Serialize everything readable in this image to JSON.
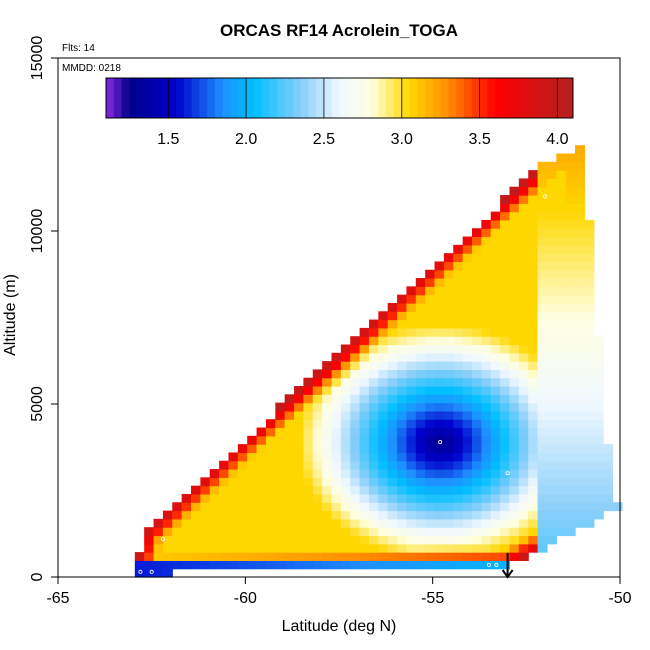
{
  "chart_data": {
    "type": "heatmap",
    "title": "ORCAS RF14 Acrolein_TOGA",
    "notes": {
      "flights": "Flts: 14",
      "date": "MMDD: 0218"
    },
    "xlabel": "Latitude (deg N)",
    "ylabel": "Altitude (m)",
    "xlim": [
      -65,
      -50
    ],
    "ylim": [
      0,
      15000
    ],
    "x_ticks": [
      -65,
      -60,
      -55,
      -50
    ],
    "x_tick_labels": [
      "-65",
      "-60",
      "-55",
      "-50"
    ],
    "y_ticks": [
      0,
      5000,
      10000,
      15000
    ],
    "y_tick_labels": [
      "0",
      "5000",
      "10000",
      "15000"
    ],
    "colorbar": {
      "range": [
        1.1,
        4.1
      ],
      "ticks": [
        1.5,
        2.0,
        2.5,
        3.0,
        3.5,
        4.0
      ],
      "tick_labels": [
        "1.5",
        "2.0",
        "2.5",
        "3.0",
        "3.5",
        "4.0"
      ],
      "colors": [
        "#8a2be2",
        "#00008b",
        "#0000cd",
        "#1e90ff",
        "#00bfff",
        "#87cefa",
        "#f0f8ff",
        "#ffffe0",
        "#ffd700",
        "#ff8c00",
        "#ff0000",
        "#b22222"
      ]
    },
    "field": {
      "description": "Interpolated curtain of acrolein concentration vs latitude and altitude",
      "boundary_lat_alt": [
        [
          -63.0,
          100
        ],
        [
          -62.7,
          1300
        ],
        [
          -52.0,
          12000
        ],
        [
          -51.0,
          12500
        ],
        [
          -50.2,
          2200
        ],
        [
          -50.0,
          2000
        ],
        [
          -53.0,
          300
        ]
      ],
      "core_min": {
        "lat": -54.8,
        "alt": 3900,
        "value": 1.2
      }
    },
    "samples": [
      {
        "lat": -62.8,
        "alt": 150
      },
      {
        "lat": -62.5,
        "alt": 150
      },
      {
        "lat": -62.2,
        "alt": 1100
      },
      {
        "lat": -58.1,
        "alt": 150
      },
      {
        "lat": -53.5,
        "alt": 350
      },
      {
        "lat": -53.3,
        "alt": 350
      },
      {
        "lat": -53.0,
        "alt": 3000
      },
      {
        "lat": -54.8,
        "alt": 3900
      },
      {
        "lat": -52.0,
        "alt": 11000
      },
      {
        "lat": -50.05,
        "alt": 2300
      }
    ],
    "arrow": {
      "lat": -53.0,
      "alt_from": 700,
      "alt_to": 0
    }
  }
}
